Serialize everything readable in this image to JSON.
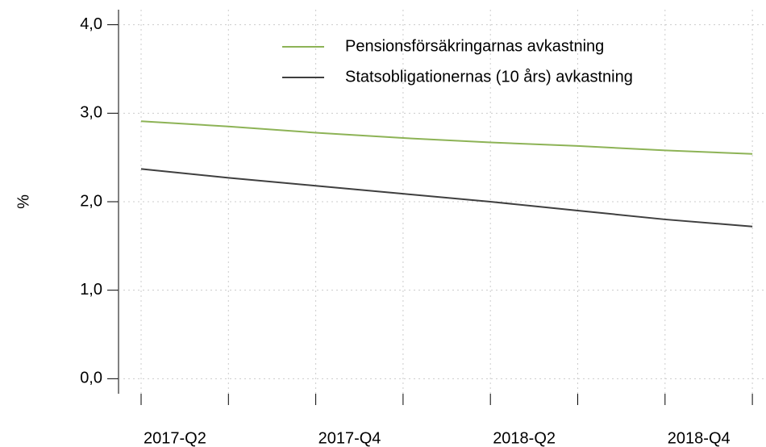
{
  "chart_data": {
    "type": "line",
    "ylabel": "%",
    "categories": [
      "2017-Q2",
      null,
      "2017-Q4",
      null,
      "2018-Q2",
      null,
      "2018-Q4",
      null
    ],
    "series": [
      {
        "name": "Pensionsförsäkringarnas avkastning",
        "color": "#8db356",
        "values": [
          2.91,
          2.85,
          2.78,
          2.72,
          2.67,
          2.63,
          2.58,
          2.54
        ]
      },
      {
        "name": "Statsobligationernas (10 års) avkastning",
        "color": "#3f3f3f",
        "values": [
          2.37,
          2.27,
          2.18,
          2.09,
          2.0,
          1.9,
          1.8,
          1.72
        ]
      }
    ],
    "ylim": [
      -0.17,
      4.17
    ],
    "yticks": [
      {
        "value": 0,
        "label": "0,0"
      },
      {
        "value": 1,
        "label": "1,0"
      },
      {
        "value": 2,
        "label": "2,0"
      },
      {
        "value": 3,
        "label": "3,0"
      },
      {
        "value": 4,
        "label": "4,0"
      }
    ],
    "grid": true,
    "legend": "top-right"
  }
}
